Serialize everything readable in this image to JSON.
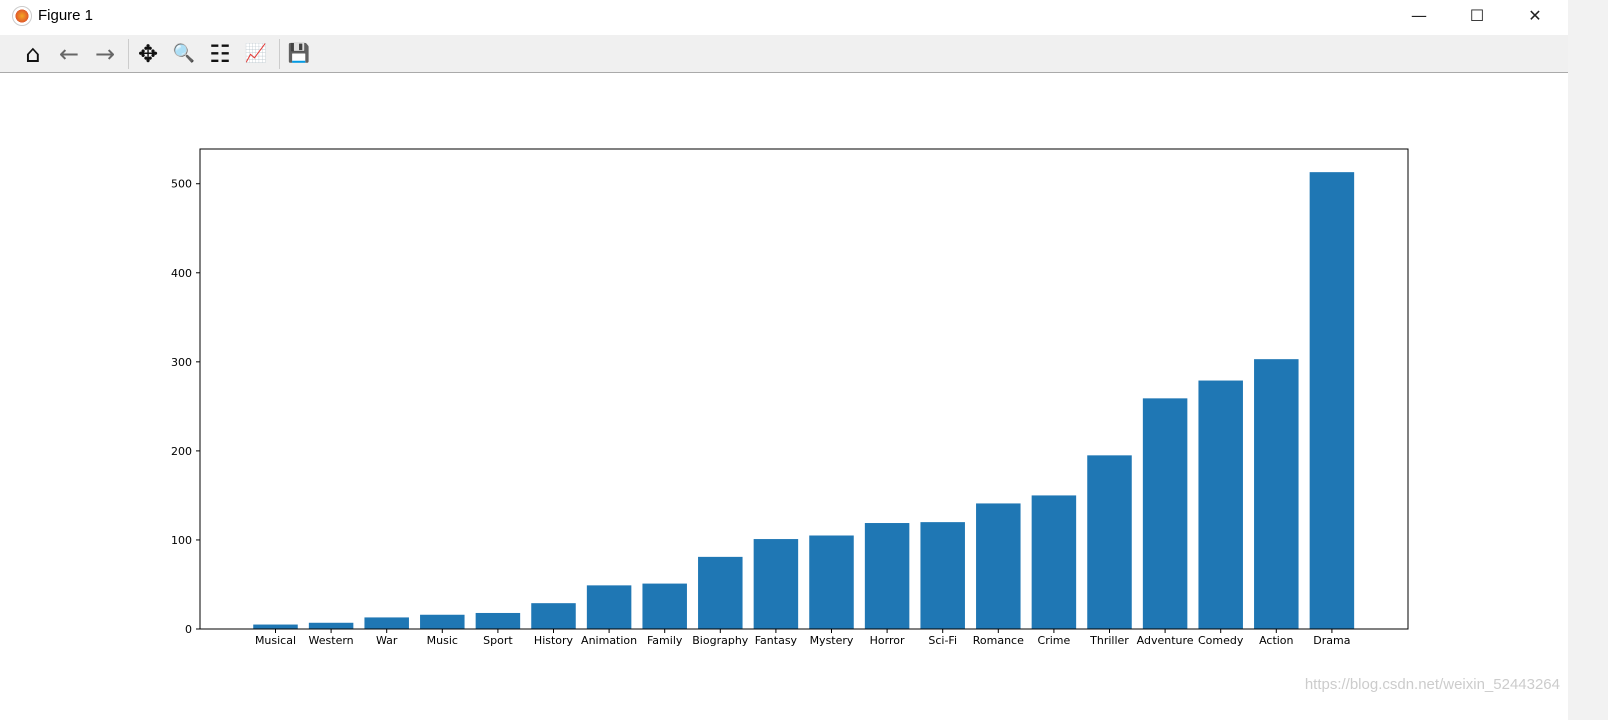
{
  "window": {
    "title": "Figure 1",
    "minimize": "—",
    "maximize": "☐",
    "close": "✕"
  },
  "toolbar": {
    "home": "⌂",
    "back": "←",
    "forward": "→",
    "pan": "✥",
    "zoom": "🔍",
    "configure": "☷",
    "edit": "📈",
    "save": "💾"
  },
  "watermark": "https://blog.csdn.net/weixin_52443264",
  "chart_data": {
    "type": "bar",
    "title": "",
    "xlabel": "",
    "ylabel": "",
    "categories": [
      "Musical",
      "Western",
      "War",
      "Music",
      "Sport",
      "History",
      "Animation",
      "Family",
      "Biography",
      "Fantasy",
      "Mystery",
      "Horror",
      "Sci-Fi",
      "Romance",
      "Crime",
      "Thriller",
      "Adventure",
      "Comedy",
      "Action",
      "Drama"
    ],
    "values": [
      5,
      7,
      13,
      16,
      18,
      29,
      49,
      51,
      81,
      101,
      105,
      119,
      120,
      141,
      150,
      195,
      259,
      279,
      303,
      513
    ],
    "ylim": [
      0,
      539
    ],
    "yticks": [
      0,
      100,
      200,
      300,
      400,
      500
    ],
    "grid": false,
    "color": "#1f77b4"
  }
}
